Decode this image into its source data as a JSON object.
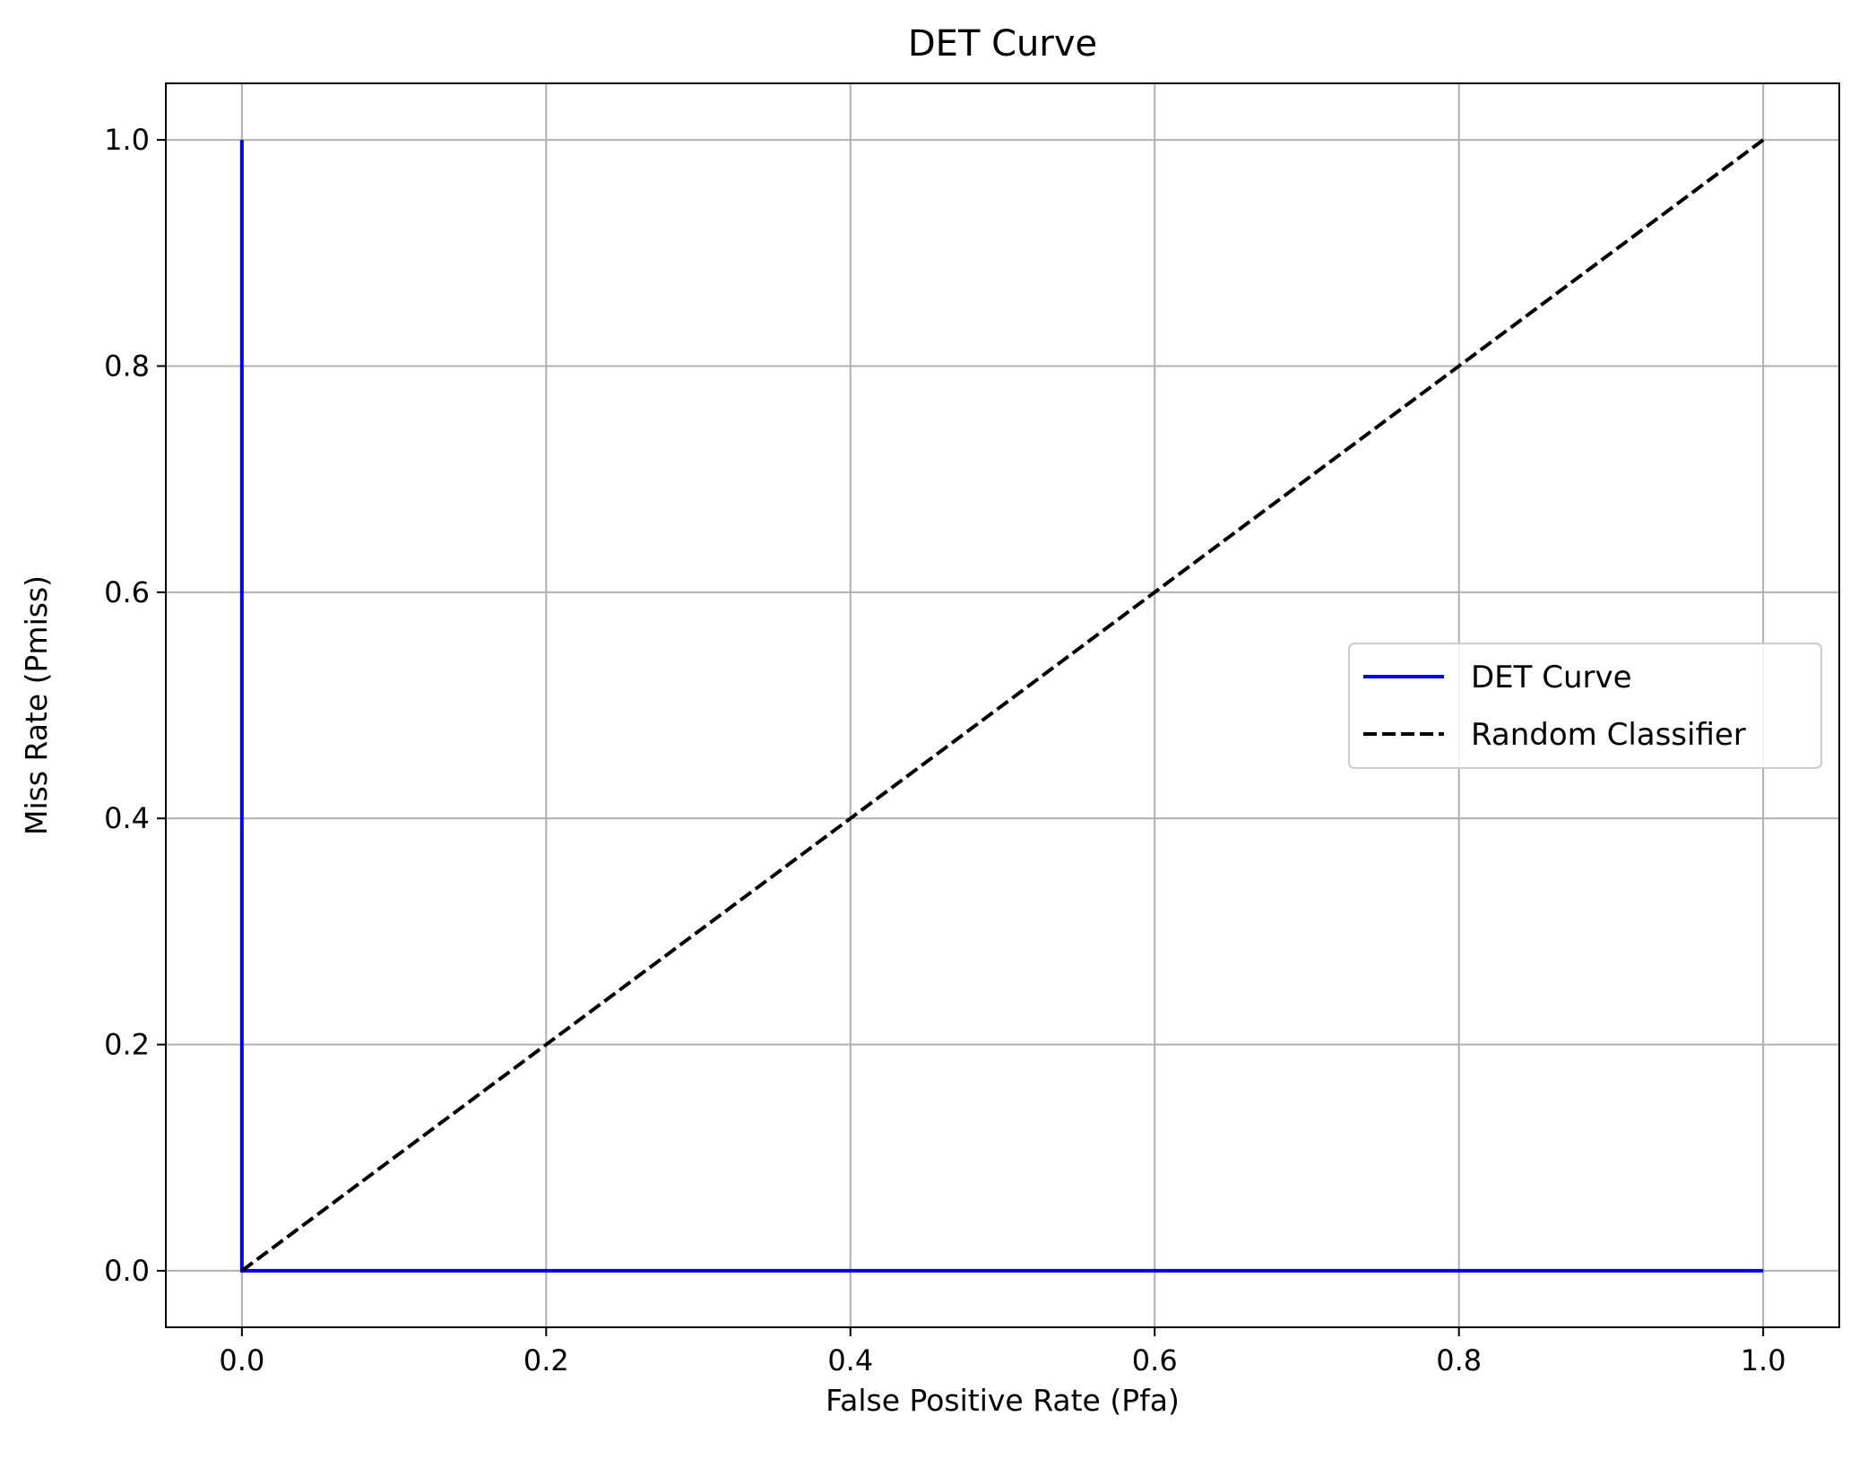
{
  "chart_data": {
    "type": "line",
    "title": "DET Curve",
    "xlabel": "False Positive Rate (Pfa)",
    "ylabel": "Miss Rate (Pmiss)",
    "xlim": [
      -0.05,
      1.05
    ],
    "ylim": [
      -0.05,
      1.05
    ],
    "xticks": [
      0.0,
      0.2,
      0.4,
      0.6,
      0.8,
      1.0
    ],
    "yticks": [
      0.0,
      0.2,
      0.4,
      0.6,
      0.8,
      1.0
    ],
    "xtick_labels": [
      "0.0",
      "0.2",
      "0.4",
      "0.6",
      "0.8",
      "1.0"
    ],
    "ytick_labels": [
      "0.0",
      "0.2",
      "0.4",
      "0.6",
      "0.8",
      "1.0"
    ],
    "grid": true,
    "legend": {
      "position": "center-right"
    },
    "series": [
      {
        "name": "DET Curve",
        "color": "#0000ff",
        "style": "solid",
        "x": [
          0.0,
          0.0,
          1.0
        ],
        "y": [
          1.0,
          0.0,
          0.0
        ]
      },
      {
        "name": "Random Classifier",
        "color": "#000000",
        "style": "dashed",
        "x": [
          0.0,
          1.0
        ],
        "y": [
          0.0,
          1.0
        ]
      }
    ]
  }
}
